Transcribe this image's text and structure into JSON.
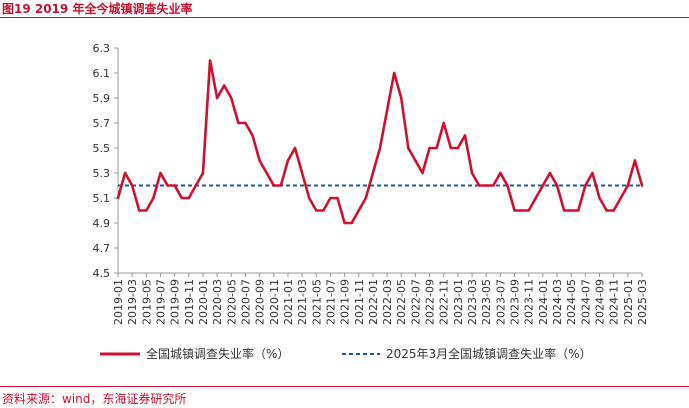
{
  "header": {
    "title": "图19  2019 年全今城镇调查失业率"
  },
  "footer": {
    "source": "资料来源：wind，东海证券研究所"
  },
  "colors": {
    "accent": "#c8102e",
    "line": "#d0102e",
    "reference": "#1f5a9e"
  },
  "chart_data": {
    "type": "line",
    "title": "",
    "xlabel": "",
    "ylabel": "",
    "ylim": [
      4.5,
      6.3
    ],
    "yticks": [
      "6.3",
      "6.1",
      "5.9",
      "5.7",
      "5.5",
      "5.3",
      "5.1",
      "4.9",
      "4.7",
      "4.5"
    ],
    "x": [
      "2019-01",
      "2019-02",
      "2019-03",
      "2019-04",
      "2019-05",
      "2019-06",
      "2019-07",
      "2019-08",
      "2019-09",
      "2019-10",
      "2019-11",
      "2019-12",
      "2020-01",
      "2020-02",
      "2020-03",
      "2020-04",
      "2020-05",
      "2020-06",
      "2020-07",
      "2020-08",
      "2020-09",
      "2020-10",
      "2020-11",
      "2020-12",
      "2021-01",
      "2021-02",
      "2021-03",
      "2021-04",
      "2021-05",
      "2021-06",
      "2021-07",
      "2021-08",
      "2021-09",
      "2021-10",
      "2021-11",
      "2021-12",
      "2022-01",
      "2022-02",
      "2022-03",
      "2022-04",
      "2022-05",
      "2022-06",
      "2022-07",
      "2022-08",
      "2022-09",
      "2022-10",
      "2022-11",
      "2022-12",
      "2023-01",
      "2023-02",
      "2023-03",
      "2023-04",
      "2023-05",
      "2023-06",
      "2023-07",
      "2023-08",
      "2023-09",
      "2023-10",
      "2023-11",
      "2023-12",
      "2024-01",
      "2024-02",
      "2024-03",
      "2024-04",
      "2024-05",
      "2024-06",
      "2024-07",
      "2024-08",
      "2024-09",
      "2024-10",
      "2024-11",
      "2024-12",
      "2025-01",
      "2025-02",
      "2025-03"
    ],
    "xtick_labels": [
      "2019-01",
      "2019-03",
      "2019-05",
      "2019-07",
      "2019-09",
      "2019-11",
      "2020-01",
      "2020-03",
      "2020-05",
      "2020-07",
      "2020-09",
      "2020-11",
      "2021-01",
      "2021-03",
      "2021-05",
      "2021-07",
      "2021-09",
      "2021-11",
      "2022-01",
      "2022-03",
      "2022-05",
      "2022-07",
      "2022-09",
      "2022-11",
      "2023-01",
      "2023-03",
      "2023-05",
      "2023-07",
      "2023-09",
      "2023-11",
      "2024-01",
      "2024-03",
      "2024-05",
      "2024-07",
      "2024-09",
      "2024-11",
      "2025-01",
      "2025-03"
    ],
    "series": [
      {
        "name": "全国城镇调查失业率（%）",
        "values": [
          5.1,
          5.3,
          5.2,
          5.0,
          5.0,
          5.1,
          5.3,
          5.2,
          5.2,
          5.1,
          5.1,
          5.2,
          5.3,
          6.2,
          5.9,
          6.0,
          5.9,
          5.7,
          5.7,
          5.6,
          5.4,
          5.3,
          5.2,
          5.2,
          5.4,
          5.5,
          5.3,
          5.1,
          5.0,
          5.0,
          5.1,
          5.1,
          4.9,
          4.9,
          5.0,
          5.1,
          5.3,
          5.5,
          5.8,
          6.1,
          5.9,
          5.5,
          5.4,
          5.3,
          5.5,
          5.5,
          5.7,
          5.5,
          5.5,
          5.6,
          5.3,
          5.2,
          5.2,
          5.2,
          5.3,
          5.2,
          5.0,
          5.0,
          5.0,
          5.1,
          5.2,
          5.3,
          5.2,
          5.0,
          5.0,
          5.0,
          5.2,
          5.3,
          5.1,
          5.0,
          5.0,
          5.1,
          5.2,
          5.4,
          5.2
        ]
      },
      {
        "name": "2025年3月全国城镇调查失业率（%）",
        "constant": 5.2
      }
    ],
    "legend_position": "bottom",
    "grid": false
  }
}
